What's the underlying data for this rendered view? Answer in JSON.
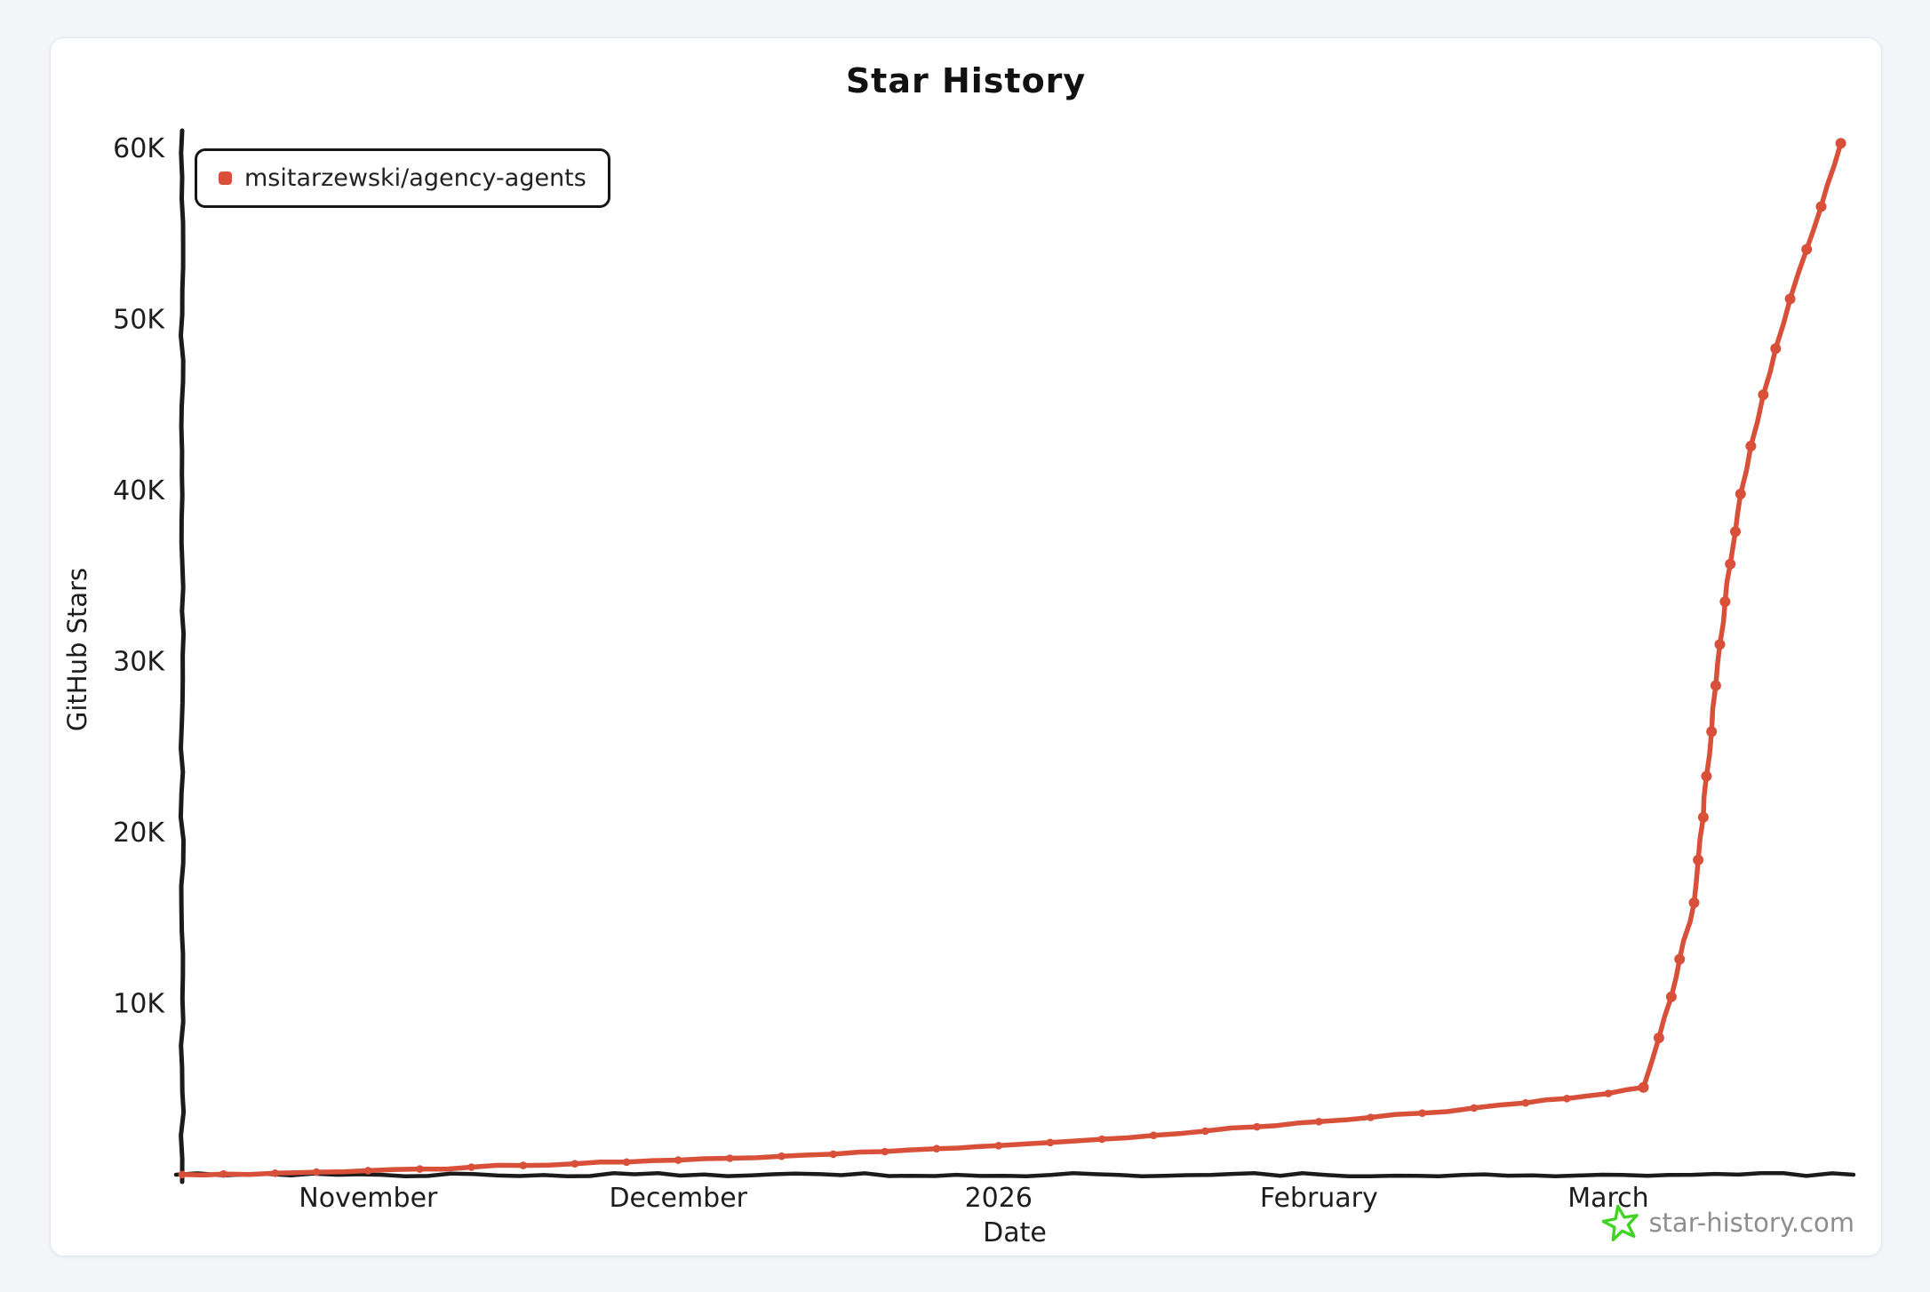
{
  "page": {
    "background": "#f3f5f9",
    "card_background": "#ffffff"
  },
  "chart_data": {
    "type": "line",
    "title": "Star History",
    "xlabel": "Date",
    "ylabel": "GitHub Stars",
    "grid": false,
    "legend_position": "top-left",
    "x_unit": "days from chart start (mid-October) read off month ticks",
    "x_range": [
      0,
      161
    ],
    "y_range": [
      0,
      62000
    ],
    "x_ticks": [
      {
        "x": 18,
        "label": "November"
      },
      {
        "x": 48,
        "label": "December"
      },
      {
        "x": 79,
        "label": "2026"
      },
      {
        "x": 110,
        "label": "February"
      },
      {
        "x": 138,
        "label": "March"
      }
    ],
    "y_ticks": [
      {
        "value": 10000,
        "label": "10K"
      },
      {
        "value": 20000,
        "label": "20K"
      },
      {
        "value": 30000,
        "label": "30K"
      },
      {
        "value": 40000,
        "label": "40K"
      },
      {
        "value": 50000,
        "label": "50K"
      },
      {
        "value": 60000,
        "label": "60K"
      }
    ],
    "series": [
      {
        "name": "msitarzewski/agency-agents",
        "color": "#d9503a",
        "points": [
          [
            0,
            10
          ],
          [
            4,
            40
          ],
          [
            9,
            90
          ],
          [
            13,
            150
          ],
          [
            18,
            240
          ],
          [
            23,
            330
          ],
          [
            28,
            440
          ],
          [
            33,
            540
          ],
          [
            38,
            640
          ],
          [
            43,
            740
          ],
          [
            48,
            850
          ],
          [
            53,
            960
          ],
          [
            58,
            1080
          ],
          [
            63,
            1200
          ],
          [
            68,
            1350
          ],
          [
            73,
            1520
          ],
          [
            79,
            1700
          ],
          [
            84,
            1880
          ],
          [
            89,
            2080
          ],
          [
            94,
            2300
          ],
          [
            99,
            2550
          ],
          [
            104,
            2800
          ],
          [
            110,
            3100
          ],
          [
            115,
            3350
          ],
          [
            120,
            3600
          ],
          [
            125,
            3900
          ],
          [
            130,
            4200
          ],
          [
            134,
            4450
          ],
          [
            138,
            4750
          ],
          [
            141.4,
            5100
          ],
          [
            142.9,
            8000
          ],
          [
            144.1,
            10400
          ],
          [
            144.9,
            12600
          ],
          [
            146.3,
            15900
          ],
          [
            146.7,
            18400
          ],
          [
            147.2,
            20900
          ],
          [
            147.5,
            23300
          ],
          [
            148,
            25900
          ],
          [
            148.4,
            28600
          ],
          [
            148.8,
            31000
          ],
          [
            149.3,
            33500
          ],
          [
            149.8,
            35700
          ],
          [
            150.3,
            37600
          ],
          [
            150.8,
            39800
          ],
          [
            151.8,
            42600
          ],
          [
            153,
            45600
          ],
          [
            154.2,
            48300
          ],
          [
            155.6,
            51200
          ],
          [
            157.2,
            54100
          ],
          [
            158.6,
            56600
          ],
          [
            160.5,
            60300
          ]
        ]
      }
    ]
  },
  "legend": {
    "items": [
      {
        "label": "msitarzewski/agency-agents",
        "color": "#d9503a"
      }
    ]
  },
  "footer": {
    "site_label": "star-history.com",
    "icon": "star-icon",
    "icon_color": "#3fd424",
    "text_color": "#8e8e8e"
  }
}
